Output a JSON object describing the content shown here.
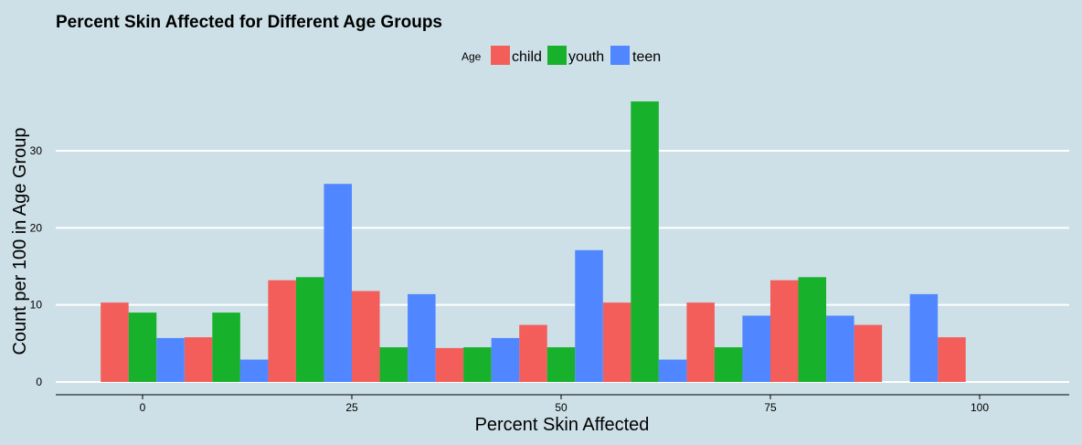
{
  "chart_data": {
    "type": "bar",
    "title": "Percent Skin Affected for Different Age Groups",
    "xlabel": "Percent Skin Affected",
    "ylabel": "Count per 100 in Age Group",
    "legend": {
      "title": "Age",
      "position": "top"
    },
    "x_ticks": [
      0,
      25,
      50,
      75,
      100
    ],
    "y_ticks": [
      0,
      10,
      20,
      30
    ],
    "xlim": [
      -10,
      110
    ],
    "ylim": [
      0,
      38
    ],
    "grid": {
      "horizontal": true,
      "vertical": false
    },
    "colors": {
      "child": "#f35e5a",
      "youth": "#17b12b",
      "teen": "#5086ff",
      "background": "#cde0e7",
      "grid": "#ffffff"
    },
    "bin_centers": [
      0,
      10,
      20,
      30,
      40,
      50,
      60,
      70,
      80,
      90,
      100
    ],
    "series": [
      {
        "name": "child",
        "values": [
          10.3,
          5.8,
          13.2,
          11.8,
          4.4,
          7.4,
          10.3,
          10.3,
          13.2,
          7.4,
          5.8
        ]
      },
      {
        "name": "youth",
        "values": [
          9.0,
          9.0,
          13.6,
          4.5,
          4.5,
          4.5,
          36.4,
          4.5,
          13.6,
          0,
          0
        ]
      },
      {
        "name": "teen",
        "values": [
          5.7,
          2.9,
          25.7,
          11.4,
          5.7,
          17.1,
          2.9,
          8.6,
          8.6,
          11.4,
          0
        ]
      }
    ]
  }
}
